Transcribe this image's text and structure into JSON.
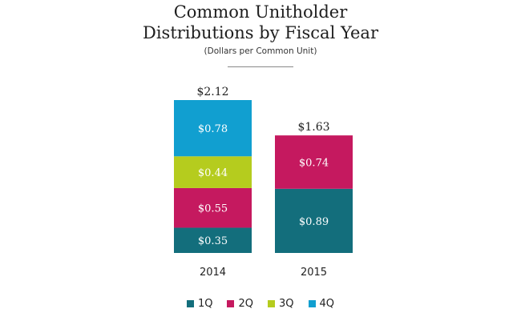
{
  "chart_data": {
    "type": "bar",
    "stacked": true,
    "title_line1": "Common Unitholder",
    "title_line2": "Distributions by Fiscal Year",
    "subtitle": "(Dollars per Common Unit)",
    "categories": [
      "2014",
      "2015"
    ],
    "totals": [
      "$2.12",
      "$1.63"
    ],
    "series": [
      {
        "name": "1Q",
        "color": "#136e7c",
        "values": [
          0.35,
          0.89
        ],
        "labels": [
          "$0.35",
          "$0.89"
        ]
      },
      {
        "name": "2Q",
        "color": "#c5195f",
        "values": [
          0.55,
          0.74
        ],
        "labels": [
          "$0.55",
          "$0.74"
        ]
      },
      {
        "name": "3Q",
        "color": "#b5cc1e",
        "values": [
          0.44,
          null
        ],
        "labels": [
          "$0.44",
          ""
        ]
      },
      {
        "name": "4Q",
        "color": "#119fd0",
        "values": [
          0.78,
          null
        ],
        "labels": [
          "$0.78",
          ""
        ]
      }
    ],
    "ylim": [
      0,
      2.12
    ],
    "legend_position": "bottom"
  }
}
